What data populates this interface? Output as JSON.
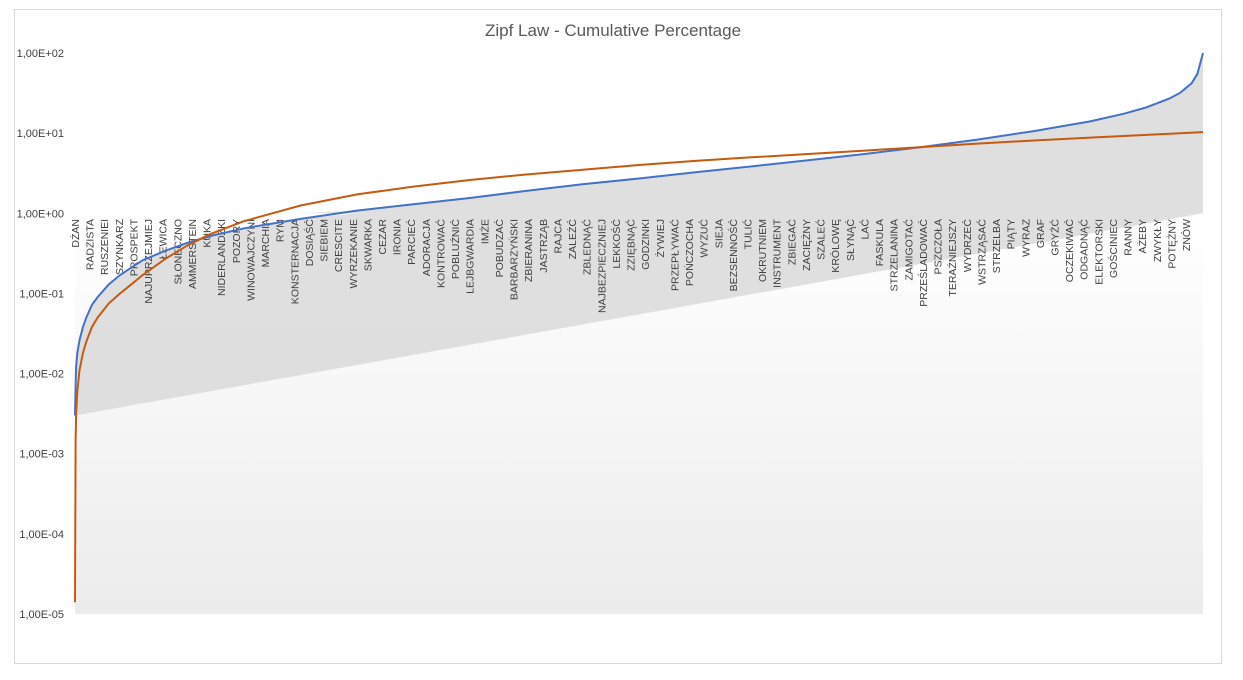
{
  "chart_data": {
    "type": "line",
    "title": "Zipf Law - Cumulative Percentage",
    "xlabel": "",
    "ylabel": "",
    "y_scale": "log",
    "ylim": [
      1e-05,
      100
    ],
    "y_tick_labels": [
      "1,00E-05",
      "1,00E-04",
      "1,00E-03",
      "1,00E-02",
      "1,00E-01",
      "1,00E+00",
      "1,00E+01",
      "1,00E+02"
    ],
    "y_tick_values": [
      1e-05,
      0.0001,
      0.001,
      0.01,
      0.1,
      1,
      10,
      100
    ],
    "categories": [
      "DŻAN",
      "RADZISTA",
      "RUSZENIEI",
      "SZYNKARZ",
      "PROSPEKT",
      "NAJUPRZEJMIEJ",
      "ŁEWICA",
      "SŁONECZNO",
      "AMMERSTEIN",
      "KUKA",
      "NIDERLANDZKI",
      "POZORY",
      "WINOWAJCZYNI",
      "MARCHIA",
      "RYM",
      "KONSTERNACJA",
      "DOSIĄŚĆ",
      "SIEBIEM",
      "CRESCITE",
      "WYRZEKANIE",
      "SKWARKA",
      "CEZAR",
      "IRONIA",
      "PARCIEĆ",
      "ADORACJA",
      "KONTROWAĆ",
      "POBLUŹNIĆ",
      "LEJBGWARDIA",
      "IMŻE",
      "POBUDZAĆ",
      "BARBARZYŃSKI",
      "ZBIERANINA",
      "JASTRZĄB",
      "RAJCA",
      "ZALEŹĆ",
      "ZBLEDNĄĆ",
      "NAJBEZPIECZNIEJ",
      "LEKKOŚĆ",
      "ZZIĘBNĄĆ",
      "GODZINKI",
      "ŻYWIEJ",
      "PRZEPŁYWAĆ",
      "POŃCZOCHA",
      "WYZUĆ",
      "SIEJA",
      "BEZSENNOŚĆ",
      "TULIĆ",
      "OKRUTNIEM",
      "INSTRUMENT",
      "ZBIEGAĆ",
      "ZACIĘŻNY",
      "SZALEĆ",
      "KRÓLOWĘ",
      "SŁYNĄĆ",
      "LAĆ",
      "FASKULA",
      "STRZELANINA",
      "ZAMIGOTAĆ",
      "PRZEŚLADOWAĆ",
      "PSZCZOŁA",
      "TERAŹNIEJSZY",
      "WYDRZEĆ",
      "WSTRZĄSAĆ",
      "STRZELBA",
      "PIĄTY",
      "WYRAZ",
      "GRAF",
      "GRYŹĆ",
      "OCZEKIWAĆ",
      "ODGADNĄĆ",
      "ELEKTORSKI",
      "GOŚCINIEC",
      "RANNY",
      "AŻEBY",
      "ZWYKŁY",
      "POTĘŻNY",
      "ZNÓW"
    ],
    "series": [
      {
        "color": "#4472c4",
        "x": [
          0,
          0.0005,
          0.001,
          0.002,
          0.004,
          0.007,
          0.01,
          0.015,
          0.02,
          0.03,
          0.04,
          0.05,
          0.06,
          0.08,
          0.1,
          0.12,
          0.15,
          0.2,
          0.25,
          0.3,
          0.35,
          0.4,
          0.45,
          0.5,
          0.55,
          0.6,
          0.65,
          0.7,
          0.75,
          0.8,
          0.85,
          0.9,
          0.93,
          0.95,
          0.97,
          0.98,
          0.99,
          0.995,
          1
        ],
        "values": [
          0.003,
          0.007,
          0.012,
          0.018,
          0.026,
          0.038,
          0.05,
          0.072,
          0.09,
          0.13,
          0.17,
          0.21,
          0.26,
          0.34,
          0.43,
          0.52,
          0.65,
          0.85,
          1.08,
          1.3,
          1.55,
          1.9,
          2.3,
          2.72,
          3.25,
          3.85,
          4.6,
          5.5,
          6.7,
          8.3,
          10.6,
          14,
          17.5,
          21,
          27,
          32,
          42,
          55,
          100
        ]
      },
      {
        "color": "#c55a11",
        "x": [
          0,
          0.0005,
          0.001,
          0.002,
          0.004,
          0.007,
          0.01,
          0.015,
          0.02,
          0.03,
          0.04,
          0.05,
          0.06,
          0.08,
          0.1,
          0.12,
          0.15,
          0.2,
          0.25,
          0.3,
          0.35,
          0.4,
          0.45,
          0.5,
          0.55,
          0.6,
          0.65,
          0.7,
          0.75,
          0.8,
          0.85,
          0.9,
          0.95,
          1
        ],
        "values": [
          1.4e-05,
          0.0015,
          0.003,
          0.006,
          0.011,
          0.018,
          0.025,
          0.038,
          0.05,
          0.075,
          0.1,
          0.13,
          0.17,
          0.27,
          0.4,
          0.55,
          0.8,
          1.25,
          1.72,
          2.15,
          2.6,
          3.05,
          3.5,
          4,
          4.5,
          5,
          5.5,
          6.05,
          6.7,
          7.4,
          8.1,
          8.8,
          9.5,
          10.3
        ]
      }
    ],
    "fill_color": "#d9d9d9",
    "grid": false,
    "legend": "none"
  }
}
